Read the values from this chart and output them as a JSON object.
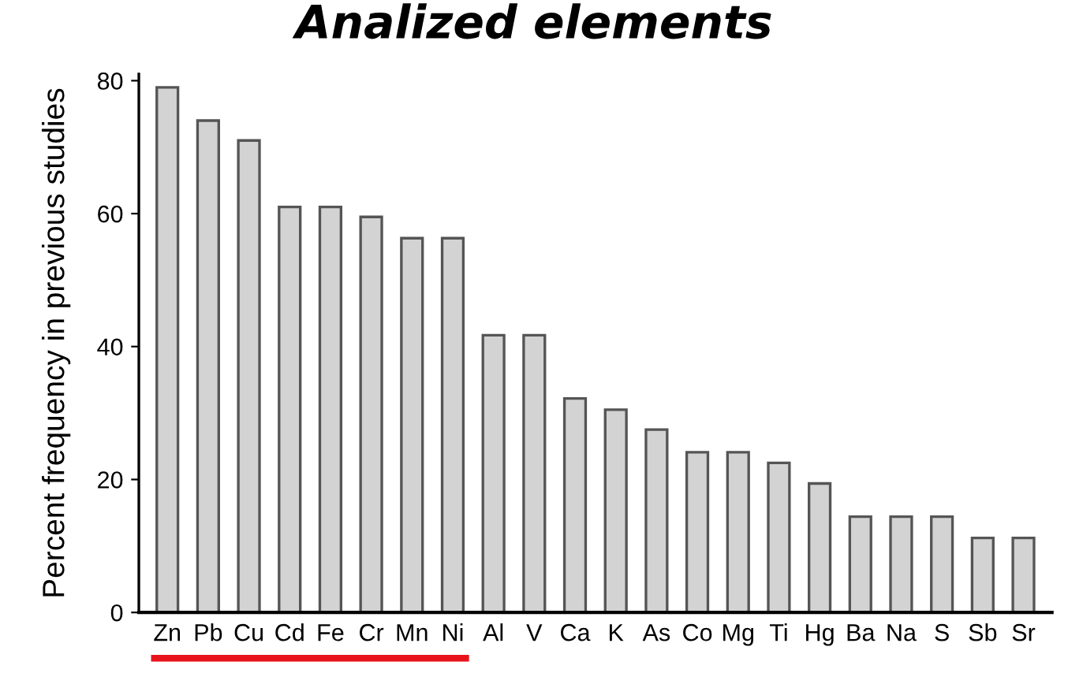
{
  "chart_data": {
    "type": "bar",
    "title": "Analized elements",
    "ylabel": "Percent frequency in previous studies",
    "categories": [
      "Zn",
      "Pb",
      "Cu",
      "Cd",
      "Fe",
      "Cr",
      "Mn",
      "Ni",
      "Al",
      "V",
      "Ca",
      "K",
      "As",
      "Co",
      "Mg",
      "Ti",
      "Hg",
      "Ba",
      "Na",
      "S",
      "Sb",
      "Sr"
    ],
    "values": [
      79,
      74,
      71,
      61,
      61,
      59.5,
      56.3,
      56.3,
      41.7,
      41.7,
      32.2,
      30.5,
      27.5,
      24.1,
      24.1,
      22.5,
      19.4,
      14.4,
      14.4,
      14.4,
      11.2,
      11.2
    ],
    "color": "#d3d3d3",
    "ylim": [
      0,
      81
    ],
    "yticks": [
      0,
      20,
      40,
      60,
      80
    ],
    "grid": false
  }
}
